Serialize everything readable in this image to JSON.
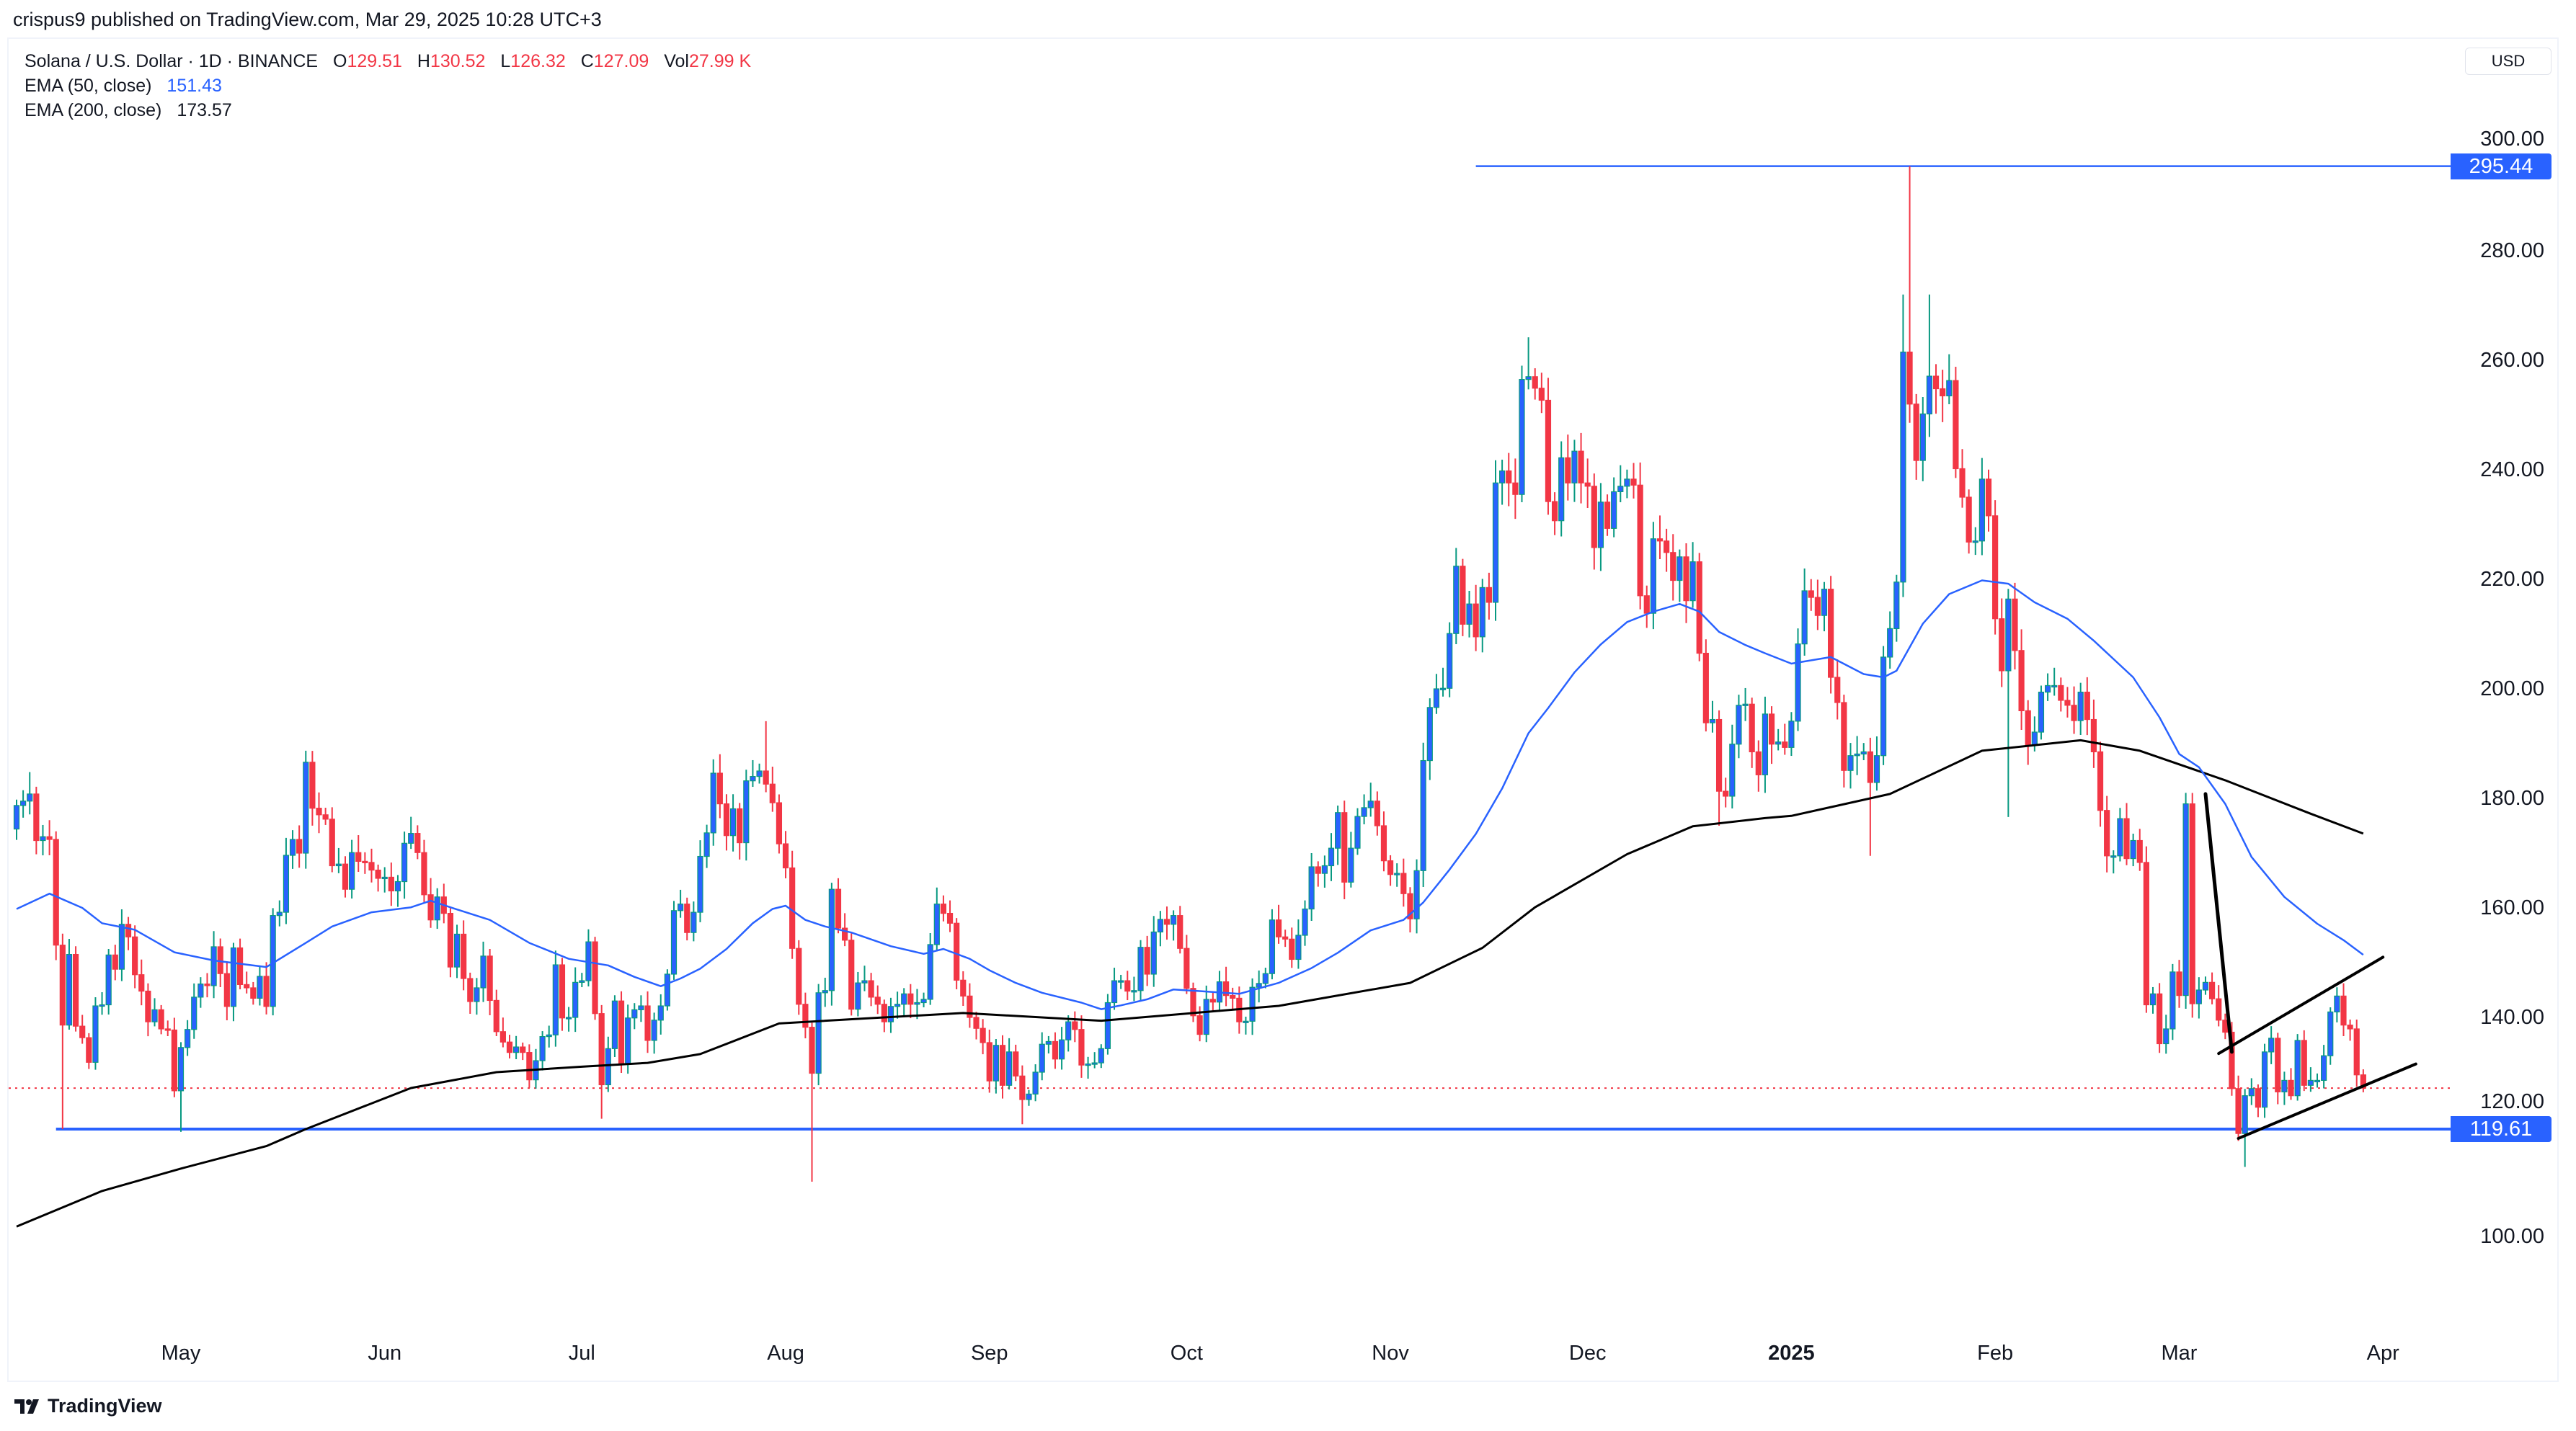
{
  "header": {
    "publisher_line": "crispus9 published on TradingView.com, Mar 29, 2025 10:28 UTC+3"
  },
  "legend": {
    "symbol": "Solana / U.S. Dollar · 1D · BINANCE",
    "open_label": "O",
    "open": "129.51",
    "high_label": "H",
    "high": "130.52",
    "low_label": "L",
    "low": "126.32",
    "close_label": "C",
    "close": "127.09",
    "vol_label": "Vol",
    "vol": "27.99 K",
    "ema50_label": "EMA (50, close)",
    "ema50_value": "151.43",
    "ema200_label": "EMA (200, close)",
    "ema200_value": "173.57"
  },
  "currency_button": "USD",
  "branding": {
    "logo_text": "TradingView"
  },
  "colors": {
    "bull_body": "#2962ff",
    "bull_wick": "#089981",
    "bear": "#f23645",
    "ema50": "#2962ff",
    "ema200": "#000000",
    "level_line": "#2962ff",
    "trendline": "#000000",
    "last_price_line": "#f23645"
  },
  "chart_data": {
    "type": "candlestick",
    "title": "",
    "ylim": [
      80,
      310
    ],
    "y_ticks": [
      "100.00",
      "120.00",
      "140.00",
      "160.00",
      "180.00",
      "200.00",
      "220.00",
      "240.00",
      "260.00",
      "280.00",
      "300.00"
    ],
    "x_ticks": [
      {
        "label": "May",
        "date": "2024-05-01"
      },
      {
        "label": "Jun",
        "date": "2024-06-01"
      },
      {
        "label": "Jul",
        "date": "2024-07-01"
      },
      {
        "label": "Aug",
        "date": "2024-08-01"
      },
      {
        "label": "Sep",
        "date": "2024-09-01"
      },
      {
        "label": "Oct",
        "date": "2024-10-01"
      },
      {
        "label": "Nov",
        "date": "2024-11-01"
      },
      {
        "label": "Dec",
        "date": "2024-12-01"
      },
      {
        "label": "2025",
        "date": "2025-01-01",
        "bold": true
      },
      {
        "label": "Feb",
        "date": "2025-02-01"
      },
      {
        "label": "Mar",
        "date": "2025-03-01"
      },
      {
        "label": "Apr",
        "date": "2025-04-01"
      }
    ],
    "candles": {
      "start_date": "2024-04-06",
      "first_open": 174.4,
      "close": [
        178.7,
        179.5,
        180.8,
        172.3,
        173,
        172.5,
        153.2,
        138.6,
        151.5,
        138.4,
        136.3,
        131.8,
        142.1,
        142.3,
        151.4,
        148.8,
        157,
        154.7,
        147.8,
        144.8,
        139.2,
        141.4,
        137.9,
        137.7,
        126.6,
        134.5,
        137.8,
        143.7,
        146.1,
        145.8,
        152.9,
        148,
        142,
        152.7,
        146,
        145.4,
        143.5,
        147.5,
        142,
        158.6,
        159.2,
        169.6,
        172.5,
        170,
        186.6,
        178.2,
        177,
        176.2,
        167.7,
        168,
        163.4,
        170.1,
        168.5,
        168.3,
        166.9,
        165.4,
        165.6,
        163.1,
        164.8,
        171.8,
        173.6,
        170.1,
        162.4,
        157.8,
        162,
        159,
        149.2,
        155.2,
        147.1,
        142.9,
        145.4,
        151.2,
        143.1,
        137.4,
        135.5,
        133.6,
        134.6,
        133.6,
        128.6,
        132.1,
        136.5,
        136.8,
        149.6,
        139.9,
        140,
        146.4,
        146.7,
        153.8,
        140.7,
        127.7,
        134.3,
        143,
        131.5,
        139.9,
        141.4,
        142.1,
        135.8,
        139.5,
        142.1,
        147.9,
        159.5,
        160.7,
        155.5,
        159.2,
        169.4,
        173.7,
        184.6,
        179,
        173.2,
        178.1,
        171.9,
        183.2,
        184,
        185,
        182.6,
        179.2,
        171.7,
        167.3,
        152.6,
        142.4,
        138.2,
        129.8,
        144.5,
        144.9,
        163.4,
        156.3,
        154.1,
        141.5,
        146.3,
        146.7,
        143.7,
        142.4,
        139.2,
        142,
        142.4,
        144.3,
        142.4,
        142.7,
        143.3,
        153.3,
        160.7,
        159,
        157.2,
        146.8,
        143.9,
        140,
        138,
        135.4,
        128.4,
        134.9,
        127.6,
        133.7,
        129.3,
        125,
        126,
        130,
        135.1,
        135.6,
        132.4,
        135.9,
        139.2,
        137.8,
        131.3,
        131.5,
        131.7,
        134.3,
        142.7,
        146.7,
        146.7,
        144.8,
        144.9,
        152.8,
        147.9,
        155.6,
        157.9,
        157,
        158.6,
        152.6,
        145.3,
        140.3,
        136.9,
        143.3,
        142.8,
        146.5,
        144,
        143.5,
        139.2,
        139.3,
        145.5,
        146.2,
        148,
        157.8,
        154.7,
        154.3,
        150.6,
        155,
        159.8,
        167.5,
        166.3,
        167.7,
        170.9,
        177.4,
        164.7,
        170.9,
        176.7,
        178.3,
        179.5,
        175,
        168.6,
        166.1,
        166.3,
        162.6,
        158,
        166.8,
        186.9,
        196.6,
        200,
        200.1,
        210.1,
        222.4,
        211.8,
        215.5,
        209.5,
        218.5,
        215.8,
        237.6,
        239.8,
        237.6,
        235.5,
        256.5,
        257,
        254.9,
        252.7,
        234.2,
        230.7,
        242.2,
        237.6,
        243.4,
        237.6,
        237,
        225.8,
        234.1,
        229.3,
        236,
        237,
        238.3,
        237.2,
        217,
        213.8,
        227.4,
        227,
        224.9,
        219.8,
        224.1,
        216.1,
        223.2,
        206.5,
        193.8,
        194.4,
        181.3,
        180.4,
        189.9,
        197,
        197.2,
        188.5,
        184.3,
        195.4,
        189.9,
        190.3,
        189.3,
        194.1,
        208.2,
        217.9,
        216.7,
        213.4,
        218.2,
        202.1,
        197.5,
        185.1,
        187.8,
        188.1,
        188.5,
        182.9,
        187.8,
        205.8,
        211,
        219.5,
        261.5,
        252,
        241.7,
        250.2,
        257.1,
        254.8,
        253.5,
        256.3,
        240.2,
        235,
        226.8,
        227,
        238.3,
        231.6,
        212.8,
        203.3,
        216.4,
        207,
        196,
        189.7,
        192.1,
        199.4,
        200.6,
        200.6,
        197.9,
        197,
        194.2,
        199.4,
        194.4,
        188.5,
        177.8,
        169.5,
        169.5,
        176.3,
        169,
        172.3,
        168.3,
        142.3,
        144.3,
        135.2,
        137.9,
        148.3,
        144,
        179,
        142.5,
        145,
        146.4,
        143.4,
        139.5,
        137.3,
        127,
        118.8,
        125.7,
        127,
        123.6,
        133.7,
        136.2,
        126.4,
        128.5,
        125.7,
        135.8,
        127.6,
        128.5,
        128.5,
        133,
        141,
        143.9,
        138.6,
        137.9,
        129.51,
        127.09
      ],
      "wick_extremes": [
        {
          "date": "2024-04-08",
          "high": 184.8
        },
        {
          "date": "2024-04-13",
          "low": 119.61
        },
        {
          "date": "2024-05-01",
          "low": 119.1
        },
        {
          "date": "2024-05-20",
          "high": 188.7
        },
        {
          "date": "2024-07-04",
          "low": 121.5
        },
        {
          "date": "2024-07-29",
          "high": 194.1
        },
        {
          "date": "2024-08-05",
          "low": 110
        },
        {
          "date": "2024-09-06",
          "low": 120.5
        },
        {
          "date": "2024-11-22",
          "high": 264.2
        },
        {
          "date": "2024-12-21",
          "low": 175
        },
        {
          "date": "2025-01-13",
          "low": 169.5
        },
        {
          "date": "2025-01-18",
          "high": 272
        },
        {
          "date": "2025-01-19",
          "high": 295.44
        },
        {
          "date": "2025-01-22",
          "high": 272
        },
        {
          "date": "2025-02-03",
          "low": 176.6
        },
        {
          "date": "2025-03-02",
          "high": 181
        },
        {
          "date": "2025-03-11",
          "low": 112.7
        },
        {
          "date": "2025-03-29",
          "high": 130.52,
          "low": 126.32
        }
      ]
    },
    "ema50": [
      [
        "2024-04-06",
        159.8
      ],
      [
        "2024-04-11",
        162.6
      ],
      [
        "2024-04-16",
        160
      ],
      [
        "2024-04-19",
        157.2
      ],
      [
        "2024-04-24",
        156
      ],
      [
        "2024-04-30",
        151.9
      ],
      [
        "2024-05-06",
        150.4
      ],
      [
        "2024-05-14",
        149.2
      ],
      [
        "2024-05-20",
        153.6
      ],
      [
        "2024-05-24",
        156.6
      ],
      [
        "2024-05-30",
        159.2
      ],
      [
        "2024-06-05",
        160.1
      ],
      [
        "2024-06-08",
        161.3
      ],
      [
        "2024-06-11",
        160.1
      ],
      [
        "2024-06-17",
        157.8
      ],
      [
        "2024-06-23",
        153.6
      ],
      [
        "2024-06-29",
        150.7
      ],
      [
        "2024-07-05",
        149.5
      ],
      [
        "2024-07-09",
        147.4
      ],
      [
        "2024-07-13",
        145.7
      ],
      [
        "2024-07-16",
        147.1
      ],
      [
        "2024-07-19",
        148.9
      ],
      [
        "2024-07-23",
        152.5
      ],
      [
        "2024-07-27",
        157.2
      ],
      [
        "2024-07-30",
        159.8
      ],
      [
        "2024-08-01",
        160.4
      ],
      [
        "2024-08-04",
        157.8
      ],
      [
        "2024-08-07",
        156.6
      ],
      [
        "2024-08-11",
        155.5
      ],
      [
        "2024-08-17",
        153
      ],
      [
        "2024-08-22",
        151.6
      ],
      [
        "2024-08-25",
        152.5
      ],
      [
        "2024-08-29",
        150.7
      ],
      [
        "2024-09-01",
        148.6
      ],
      [
        "2024-09-05",
        146.3
      ],
      [
        "2024-09-09",
        144.5
      ],
      [
        "2024-09-15",
        142.7
      ],
      [
        "2024-09-18",
        141.5
      ],
      [
        "2024-09-21",
        142.2
      ],
      [
        "2024-09-25",
        143.3
      ],
      [
        "2024-09-29",
        145.1
      ],
      [
        "2024-10-03",
        144.8
      ],
      [
        "2024-10-09",
        144.3
      ],
      [
        "2024-10-15",
        146.3
      ],
      [
        "2024-10-20",
        149
      ],
      [
        "2024-10-24",
        151.8
      ],
      [
        "2024-10-29",
        155.9
      ],
      [
        "2024-11-03",
        157.8
      ],
      [
        "2024-11-06",
        161
      ],
      [
        "2024-11-10",
        167
      ],
      [
        "2024-11-14",
        173.5
      ],
      [
        "2024-11-18",
        181.8
      ],
      [
        "2024-11-22",
        191.9
      ],
      [
        "2024-11-25",
        196.5
      ],
      [
        "2024-11-29",
        203
      ],
      [
        "2024-12-03",
        208.1
      ],
      [
        "2024-12-07",
        212.2
      ],
      [
        "2024-12-11",
        214.1
      ],
      [
        "2024-12-15",
        215.5
      ],
      [
        "2024-12-18",
        214.1
      ],
      [
        "2024-12-21",
        210.4
      ],
      [
        "2024-12-25",
        208
      ],
      [
        "2024-12-28",
        206.5
      ],
      [
        "2025-01-01",
        204.6
      ],
      [
        "2025-01-07",
        205.8
      ],
      [
        "2025-01-12",
        202.7
      ],
      [
        "2025-01-15",
        202.1
      ],
      [
        "2025-01-17",
        203.3
      ],
      [
        "2025-01-21",
        211.9
      ],
      [
        "2025-01-25",
        217.3
      ],
      [
        "2025-01-30",
        219.8
      ],
      [
        "2025-02-03",
        219.2
      ],
      [
        "2025-02-07",
        215.8
      ],
      [
        "2025-02-12",
        212.8
      ],
      [
        "2025-02-16",
        208.8
      ],
      [
        "2025-02-22",
        202.1
      ],
      [
        "2025-02-26",
        194.8
      ],
      [
        "2025-03-01",
        188.1
      ],
      [
        "2025-03-04",
        185.7
      ],
      [
        "2025-03-08",
        179
      ],
      [
        "2025-03-12",
        169.3
      ],
      [
        "2025-03-17",
        162
      ],
      [
        "2025-03-22",
        157.1
      ],
      [
        "2025-03-26",
        154.1
      ],
      [
        "2025-03-29",
        151.43
      ]
    ],
    "ema200": [
      [
        "2024-04-06",
        101.8
      ],
      [
        "2024-04-19",
        108.3
      ],
      [
        "2024-05-01",
        112.4
      ],
      [
        "2024-05-14",
        116.5
      ],
      [
        "2024-05-20",
        119.6
      ],
      [
        "2024-06-05",
        127.1
      ],
      [
        "2024-06-18",
        130
      ],
      [
        "2024-07-01",
        131
      ],
      [
        "2024-07-11",
        131.7
      ],
      [
        "2024-07-19",
        133.3
      ],
      [
        "2024-07-31",
        138.9
      ],
      [
        "2024-08-13",
        139.8
      ],
      [
        "2024-08-28",
        140.8
      ],
      [
        "2024-09-18",
        139.4
      ],
      [
        "2024-10-02",
        140.8
      ],
      [
        "2024-10-15",
        142.1
      ],
      [
        "2024-11-04",
        146.3
      ],
      [
        "2024-11-15",
        152.7
      ],
      [
        "2024-11-23",
        160.1
      ],
      [
        "2024-12-07",
        169.8
      ],
      [
        "2024-12-17",
        174.9
      ],
      [
        "2024-12-28",
        176.4
      ],
      [
        "2025-01-01",
        176.8
      ],
      [
        "2025-01-16",
        180.8
      ],
      [
        "2025-01-30",
        188.7
      ],
      [
        "2025-02-14",
        190.6
      ],
      [
        "2025-02-23",
        188.7
      ],
      [
        "2025-03-08",
        183.3
      ],
      [
        "2025-03-21",
        177.2
      ],
      [
        "2025-03-29",
        173.57
      ]
    ],
    "levels": [
      {
        "price": 295.44,
        "label": "295.44",
        "from_date": "2024-11-14"
      },
      {
        "price": 119.61,
        "label": "119.61",
        "from_date": "2024-04-12"
      }
    ],
    "last_price": 127.09,
    "trendlines": [
      {
        "from": [
          "2025-03-05",
          180.8
        ],
        "to": [
          "2025-03-09",
          133.7
        ]
      },
      {
        "from": [
          "2025-03-07",
          133.4
        ],
        "to": [
          "2025-04-01",
          151.0
        ]
      },
      {
        "from": [
          "2025-03-10",
          117.9
        ],
        "to": [
          "2025-04-06",
          131.5
        ]
      }
    ]
  }
}
